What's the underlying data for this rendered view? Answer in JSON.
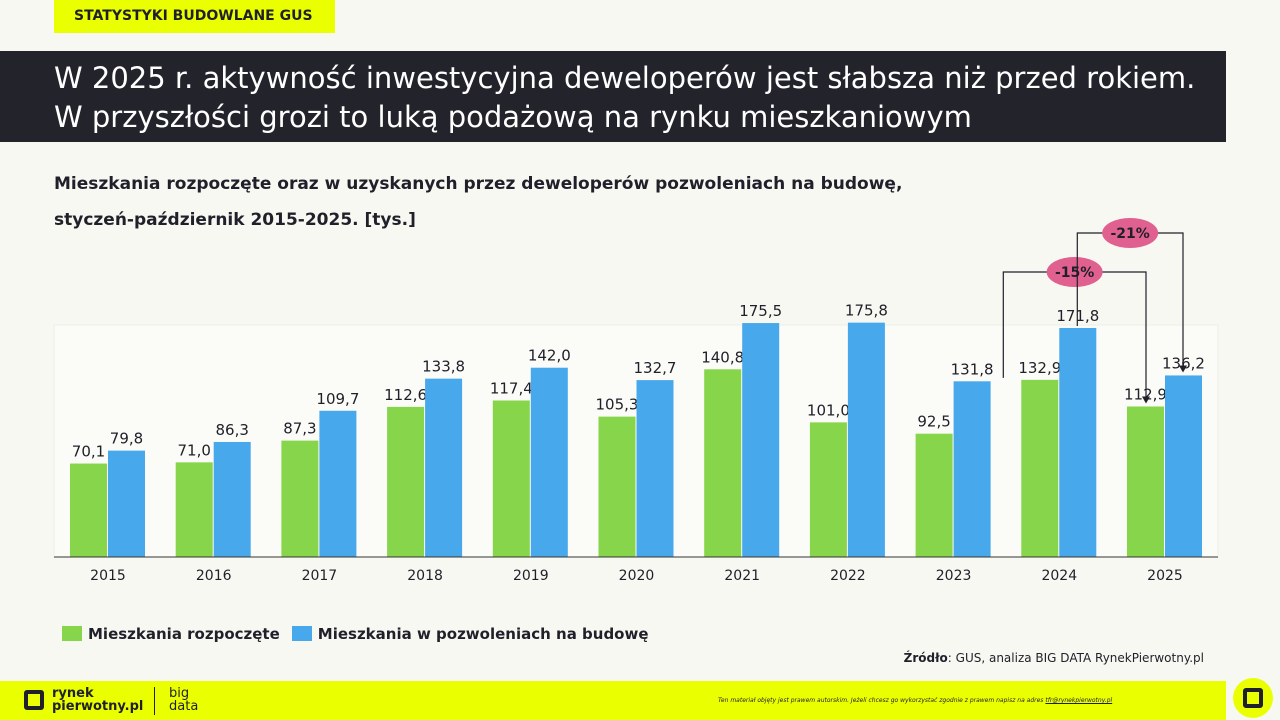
{
  "tag": "STATYSTYKI BUDOWLANE GUS",
  "title": "W 2025 r. aktywność inwestycyjna deweloperów jest słabsza niż przed rokiem. W przyszłości grozi to luką podażową na rynku mieszkaniowym",
  "subtitle": "Mieszkania rozpoczęte oraz w uzyskanych przez deweloperów pozwoleniach na budowę, styczeń-październik 2015-2025. [tys.]",
  "source_label": "Źródło",
  "source_text": ": GUS, analiza BIG DATA RynekPierwotny.pl",
  "footer": {
    "logo_line1": "rynek",
    "logo_line2": "pierwotny.pl",
    "bigdata1": "big",
    "bigdata2": "data",
    "copyright": "Ten materiał objęty jest prawem autorskim. Jeżeli chcesz go wykorzystać zgodnie z prawem napisz na adres",
    "email": "tfr@rynekpierwotny.pl"
  },
  "colors": {
    "green": "#86d54a",
    "blue": "#47a8ec",
    "badge": "#e0608f",
    "accent": "#eaff00"
  },
  "chart_data": {
    "type": "bar",
    "categories": [
      "2015",
      "2016",
      "2017",
      "2018",
      "2019",
      "2020",
      "2021",
      "2022",
      "2023",
      "2024",
      "2025"
    ],
    "series": [
      {
        "name": "Mieszkania rozpoczęte",
        "values": [
          70.1,
          71.0,
          87.3,
          112.6,
          117.4,
          105.3,
          140.8,
          101.0,
          92.5,
          132.9,
          112.9
        ],
        "labels": [
          "70,1",
          "71,0",
          "87,3",
          "112,6",
          "117,4",
          "105,3",
          "140,8",
          "101,0",
          "92,5",
          "132,9",
          "112,9"
        ]
      },
      {
        "name": "Mieszkania w pozwoleniach na budowę",
        "values": [
          79.8,
          86.3,
          109.7,
          133.8,
          142.0,
          132.7,
          175.5,
          175.8,
          131.8,
          171.8,
          136.2
        ],
        "labels": [
          "79,8",
          "86,3",
          "109,7",
          "133,8",
          "142,0",
          "132,7",
          "175,5",
          "175,8",
          "131,8",
          "171,8",
          "136,2"
        ]
      }
    ],
    "annotations": [
      {
        "label": "-15%",
        "from": "2024",
        "to": "2025",
        "series": 0
      },
      {
        "label": "-21%",
        "from": "2024",
        "to": "2025",
        "series": 1
      }
    ],
    "legend": "bottom-left",
    "grid": false
  }
}
